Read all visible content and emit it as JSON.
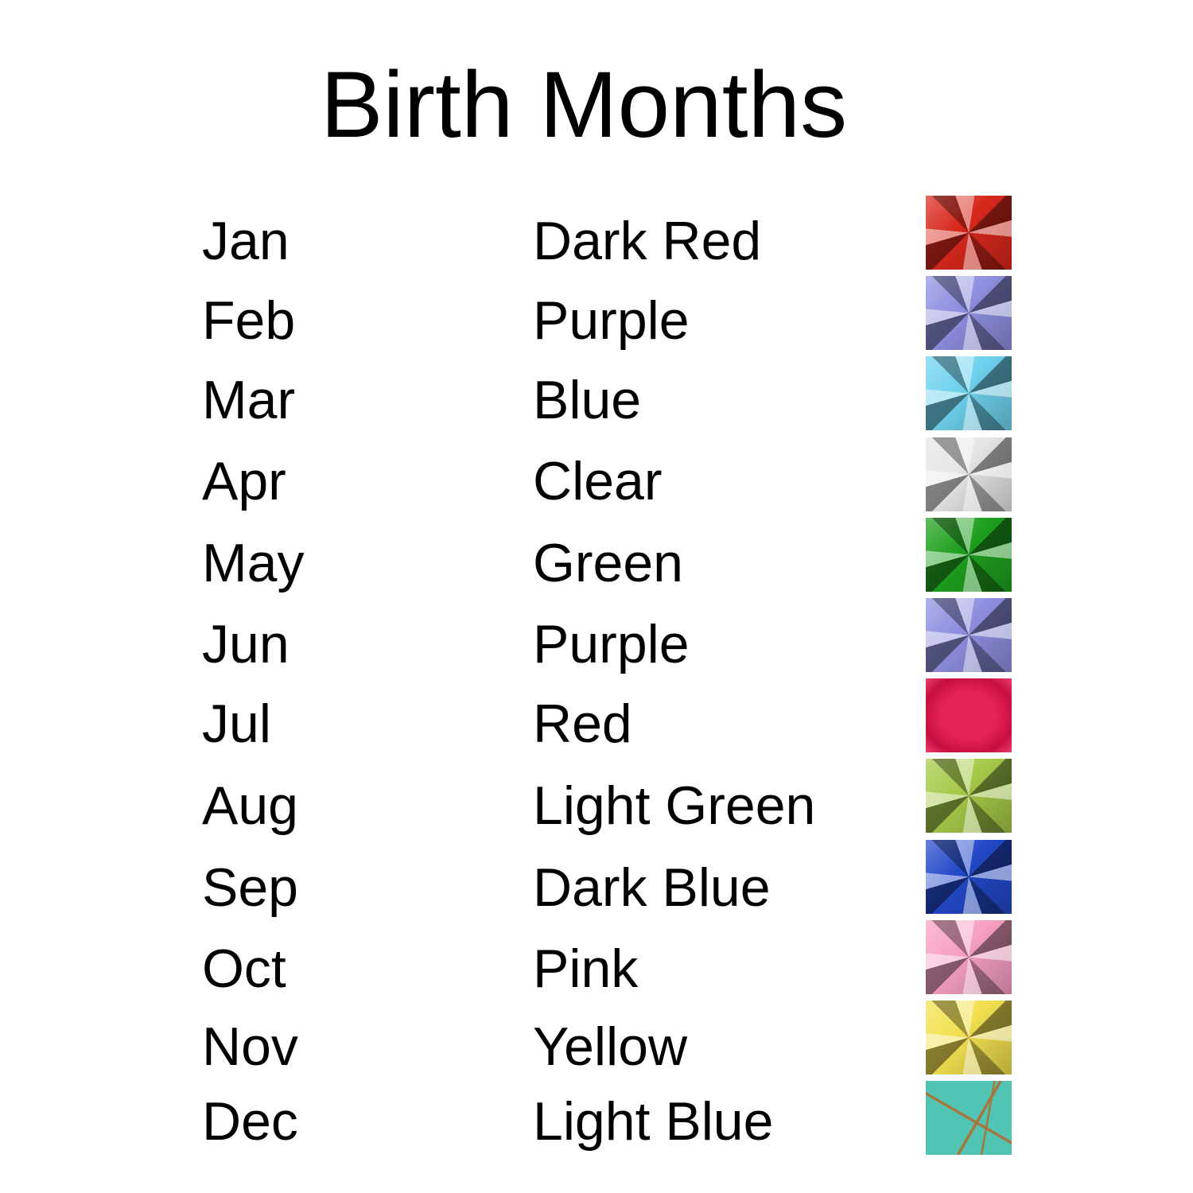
{
  "title": "Birth Months",
  "rows": [
    {
      "month": "Jan",
      "color": "Dark Red",
      "gem_color": "#d8281c",
      "gem_style": "faceted"
    },
    {
      "month": "Feb",
      "color": "Purple",
      "gem_color": "#8f8fe0",
      "gem_style": "faceted"
    },
    {
      "month": "Mar",
      "color": "Blue",
      "gem_color": "#6fd2ee",
      "gem_style": "faceted"
    },
    {
      "month": "Apr",
      "color": "Clear",
      "gem_color": "#e6e6e6",
      "gem_style": "faceted"
    },
    {
      "month": "May",
      "color": "Green",
      "gem_color": "#1fa01f",
      "gem_style": "faceted"
    },
    {
      "month": "Jun",
      "color": "Purple",
      "gem_color": "#8f8fe0",
      "gem_style": "faceted"
    },
    {
      "month": "Jul",
      "color": "Red",
      "gem_color": "#e3104a",
      "gem_style": "smooth"
    },
    {
      "month": "Aug",
      "color": "Light Green",
      "gem_color": "#a5c948",
      "gem_style": "faceted"
    },
    {
      "month": "Sep",
      "color": "Dark Blue",
      "gem_color": "#2348c8",
      "gem_style": "faceted"
    },
    {
      "month": "Oct",
      "color": "Pink",
      "gem_color": "#f7a0c4",
      "gem_style": "faceted"
    },
    {
      "month": "Nov",
      "color": "Yellow",
      "gem_color": "#f2e050",
      "gem_style": "faceted"
    },
    {
      "month": "Dec",
      "color": "Light Blue",
      "gem_color": "#52c4b4",
      "gem_style": "stone"
    }
  ]
}
